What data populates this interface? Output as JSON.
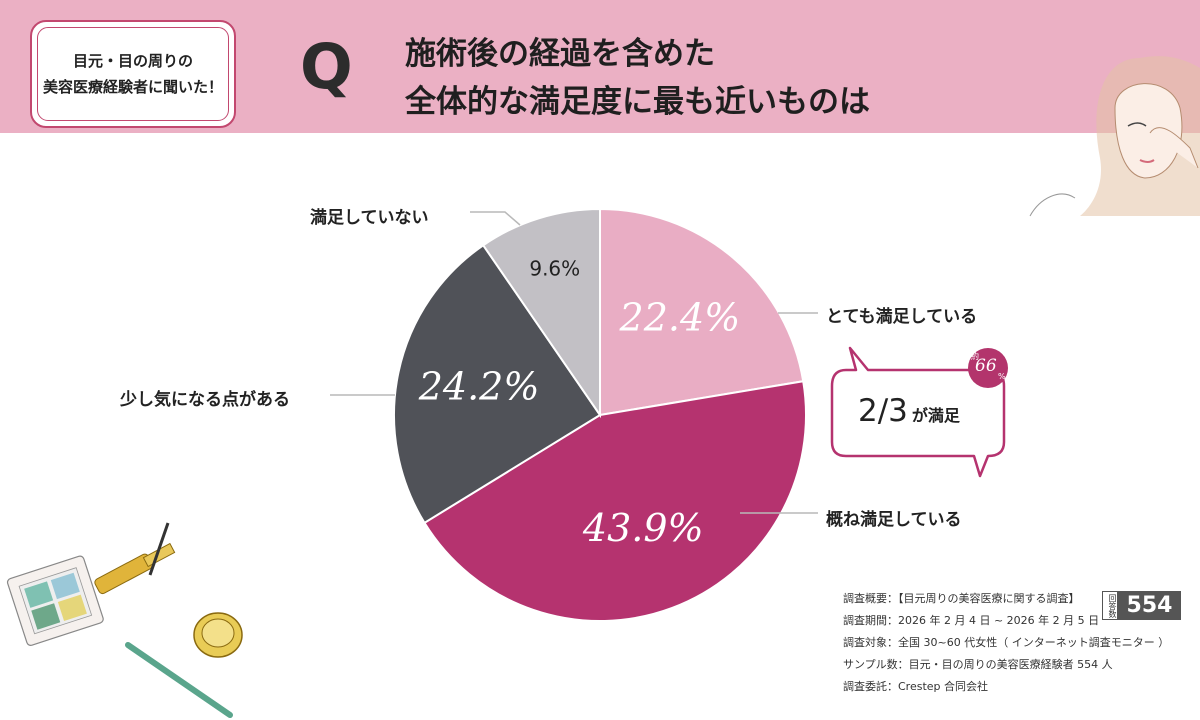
{
  "header": {
    "badge_line1": "目元・目の周りの",
    "badge_line2": "美容医療経験者に聞いた！",
    "q_mark": "Q",
    "question_line1": "施術後の経過を含めた",
    "question_line2": "全体的な満足度に最も近いものは"
  },
  "chart_data": {
    "type": "pie",
    "title": "施術後の経過を含めた全体的な満足度に最も近いものは",
    "slices": [
      {
        "label": "とても満足している",
        "value": 22.4,
        "value_label": "22.4%",
        "color": "#e9adc4"
      },
      {
        "label": "概ね満足している",
        "value": 43.9,
        "value_label": "43.9%",
        "color": "#b5336f"
      },
      {
        "label": "少し気になる点がある",
        "value": 24.2,
        "value_label": "24.2%",
        "color": "#505258"
      },
      {
        "label": "満足していない",
        "value": 9.6,
        "value_label": "9.6%",
        "color": "#c2c0c5"
      }
    ]
  },
  "callout": {
    "main_value": "2/3",
    "main_text": "が満足",
    "stamp_prefix": "約",
    "stamp_value": "66",
    "stamp_unit": "%"
  },
  "survey": {
    "overview": "調査概要：【目元周りの美容医療に関する調査】",
    "period": "調査期間：2026 年 2 月 4 日 ~ 2026 年 2 月 5 日",
    "target": "調査対象：全国 30~60 代女性（ インターネット調査モニター ）",
    "sample": "サンプル数：目元・目の周りの美容医療経験者 554 人",
    "commissioner": "調査委託：Crestep 合同会社",
    "respondents_label": "回答数",
    "respondents_count": "554"
  },
  "colors": {
    "header_bg": "#ebb0c4",
    "accent": "#b5336f"
  }
}
